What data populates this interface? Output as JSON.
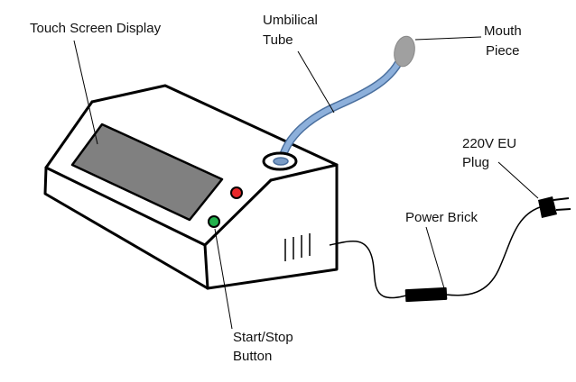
{
  "labels": {
    "touch_screen": "Touch Screen Display",
    "umbilical_1": "Umbilical",
    "umbilical_2": "Tube",
    "mouth_1": "Mouth",
    "mouth_2": "Piece",
    "plug_1": "220V EU",
    "plug_2": "Plug",
    "power_brick": "Power Brick",
    "button_1": "Start/Stop",
    "button_2": "Button"
  },
  "colors": {
    "outline": "#000000",
    "screen": "#808080",
    "tube": "#7a9cc6",
    "tube_edge": "#4a6f9e",
    "mouthpiece": "#a0a0a0",
    "stop_button": "#e8272a",
    "start_button": "#22b14c",
    "brick": "#000000"
  }
}
